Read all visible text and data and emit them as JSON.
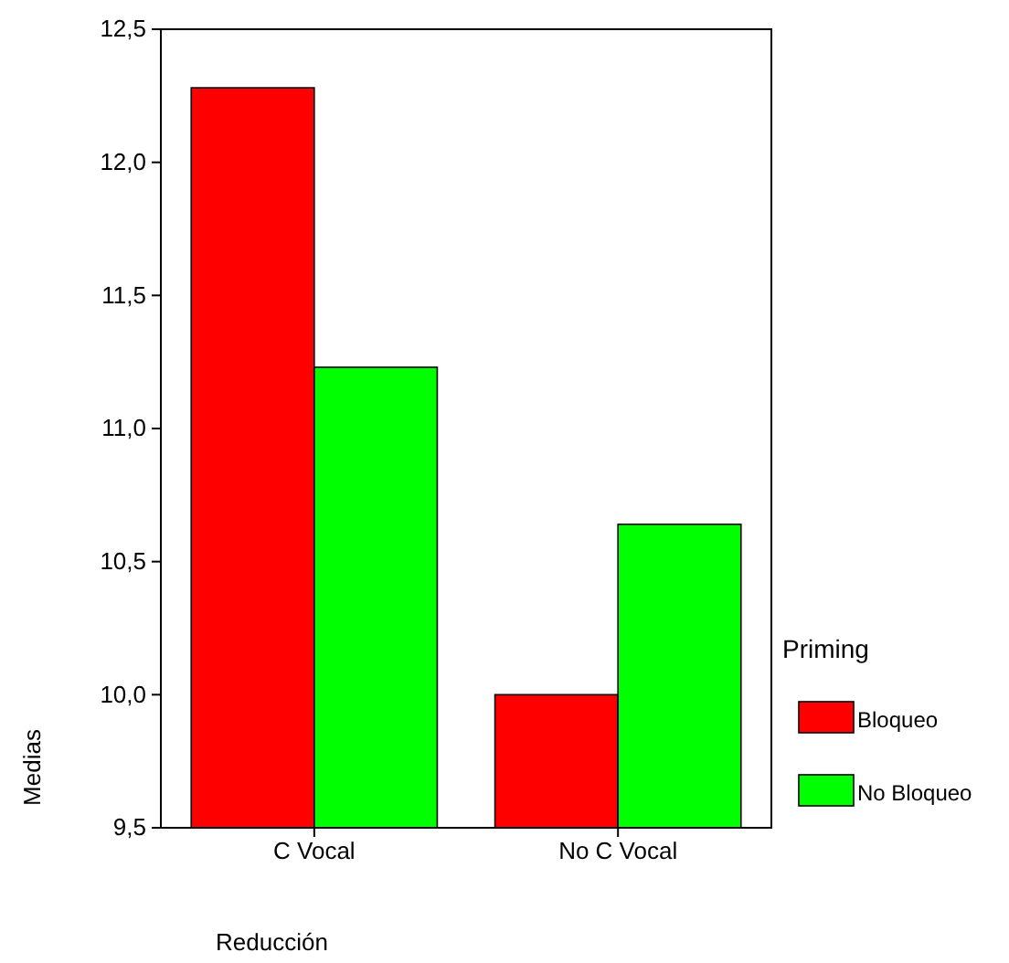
{
  "chart_data": {
    "type": "bar",
    "xlabel": "Reducción",
    "ylabel": "Medias",
    "legend_title": "Priming",
    "categories": [
      "C Vocal",
      "No C Vocal"
    ],
    "series": [
      {
        "name": "Bloqueo",
        "color": "#ff0000",
        "values": [
          12.28,
          10.0
        ]
      },
      {
        "name": "No Bloqueo",
        "color": "#00ff00",
        "values": [
          11.23,
          10.64
        ]
      }
    ],
    "ylim": [
      9.5,
      12.5
    ],
    "yticks": [
      {
        "value": 9.5,
        "label": "9,5"
      },
      {
        "value": 10,
        "label": "10,0"
      },
      {
        "value": 10.5,
        "label": "10,5"
      },
      {
        "value": 11,
        "label": "11,0"
      },
      {
        "value": 11.5,
        "label": "11,5"
      },
      {
        "value": 12,
        "label": "12,0"
      },
      {
        "value": 12.5,
        "label": "12,5"
      }
    ],
    "legend": "right",
    "grid": false
  }
}
